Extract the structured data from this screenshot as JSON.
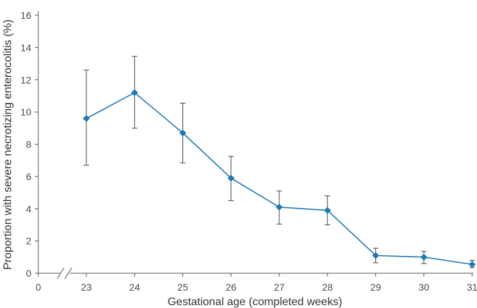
{
  "chart_data": {
    "type": "line",
    "title": "",
    "xlabel": "Gestational age (completed weeks)",
    "ylabel": "Proportion with severe necrotizing enterocolitis (%)",
    "ylim": [
      0,
      16
    ],
    "yticks": [
      0,
      2,
      4,
      6,
      8,
      10,
      12,
      14,
      16
    ],
    "xticks": [
      0,
      23,
      24,
      25,
      26,
      27,
      28,
      29,
      30,
      31
    ],
    "x_axis_break": "between 0 and 23",
    "grid": false,
    "legend": "none",
    "series": [
      {
        "color": "#1f77b4",
        "marker": "diamond",
        "x": [
          23,
          24,
          25,
          26,
          27,
          28,
          29,
          30,
          31
        ],
        "values": [
          9.6,
          11.2,
          8.7,
          5.9,
          4.1,
          3.9,
          1.1,
          1.0,
          0.55
        ],
        "lower": [
          6.7,
          9.0,
          6.85,
          4.5,
          3.05,
          3.0,
          0.65,
          0.6,
          0.35
        ],
        "upper": [
          12.6,
          13.45,
          10.55,
          7.25,
          5.1,
          4.8,
          1.55,
          1.35,
          0.8
        ]
      }
    ]
  }
}
